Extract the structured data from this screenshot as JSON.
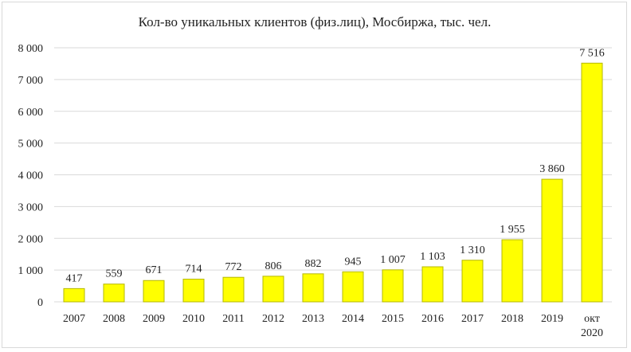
{
  "chart_data": {
    "type": "bar",
    "title": "Кол-во уникальных клиентов (физ.лиц), Мосбиржа, тыс. чел.",
    "categories": [
      [
        "2007"
      ],
      [
        "2008"
      ],
      [
        "2009"
      ],
      [
        "2010"
      ],
      [
        "2011"
      ],
      [
        "2012"
      ],
      [
        "2013"
      ],
      [
        "2014"
      ],
      [
        "2015"
      ],
      [
        "2016"
      ],
      [
        "2017"
      ],
      [
        "2018"
      ],
      [
        "2019"
      ],
      [
        "окт",
        "2020"
      ]
    ],
    "values": [
      417,
      559,
      671,
      714,
      772,
      806,
      882,
      945,
      1007,
      1103,
      1310,
      1955,
      3860,
      7516
    ],
    "data_labels": [
      "417",
      "559",
      "671",
      "714",
      "772",
      "806",
      "882",
      "945",
      "1 007",
      "1 103",
      "1 310",
      "1 955",
      "3 860",
      "7 516"
    ],
    "ylim": [
      0,
      8000
    ],
    "yticks": [
      0,
      1000,
      2000,
      3000,
      4000,
      5000,
      6000,
      7000,
      8000
    ],
    "ytick_labels": [
      "0",
      "1 000",
      "2 000",
      "3 000",
      "4 000",
      "5 000",
      "6 000",
      "7 000",
      "8 000"
    ],
    "grid": true,
    "legend": "none",
    "bar_color": "#ffff00",
    "bar_edge_color": "#b5b800",
    "grid_color": "#d9d9d9"
  }
}
